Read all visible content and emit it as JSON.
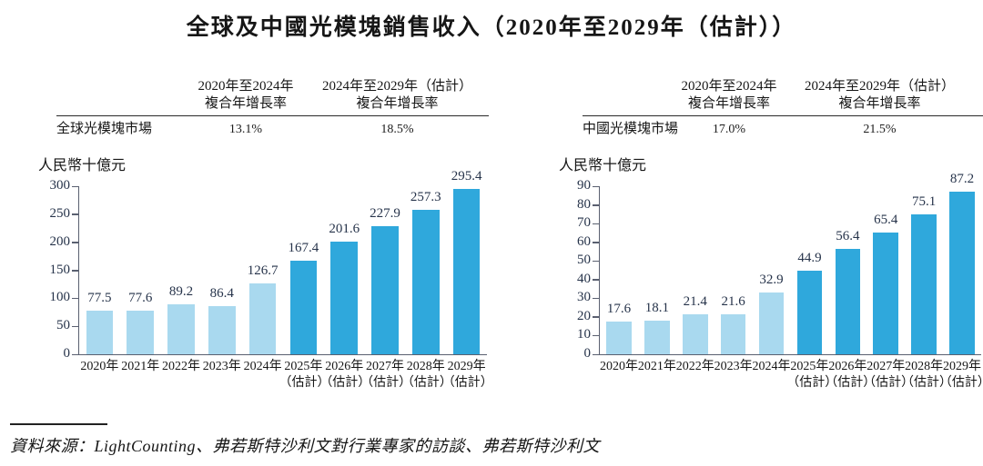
{
  "title": "全球及中國光模塊銷售收入（2020年至2029年（估計））",
  "source_note": {
    "text": "資料來源：LightCounting、弗若斯特沙利文對行業專家的訪談、弗若斯特沙利文"
  },
  "panels": [
    {
      "table": {
        "row_label": "全球光模塊市場",
        "col_headers": [
          "2020年至2024年\n複合年增長率",
          "2024年至2029年（估計）\n複合年增長率"
        ],
        "values": [
          "13.1%",
          "18.5%"
        ]
      },
      "unit_label": "人民幣十億元"
    },
    {
      "table": {
        "row_label": "中國光模塊市場",
        "col_headers": [
          "2020年至2024年\n複合年增長率",
          "2024年至2029年（估計）\n複合年增長率"
        ],
        "values": [
          "17.0%",
          "21.5%"
        ]
      },
      "unit_label": "人民幣十億元"
    }
  ],
  "chart_data": [
    {
      "type": "bar",
      "title": "全球光模塊市場",
      "ylabel": "人民幣十億元",
      "categories": [
        "2020年",
        "2021年",
        "2022年",
        "2023年",
        "2024年",
        "2025年\n（估計）",
        "2026年\n（估計）",
        "2027年\n（估計）",
        "2028年\n（估計）",
        "2029年\n（估計）"
      ],
      "values": [
        77.5,
        77.6,
        89.2,
        86.4,
        126.7,
        167.4,
        201.6,
        227.9,
        257.3,
        295.4
      ],
      "ylim": [
        0,
        300
      ],
      "ytick_step": 50,
      "estimate_start_index": 5,
      "bar_color_historical": "#a9d9ef",
      "bar_color_estimate": "#2fa8dc",
      "grid": false,
      "legend": "none"
    },
    {
      "type": "bar",
      "title": "中國光模塊市場",
      "ylabel": "人民幣十億元",
      "categories": [
        "2020年",
        "2021年",
        "2022年",
        "2023年",
        "2024年",
        "2025年\n（估計）",
        "2026年\n（估計）",
        "2027年\n（估計）",
        "2028年\n（估計）",
        "2029年\n（估計）"
      ],
      "values": [
        17.6,
        18.1,
        21.4,
        21.6,
        32.9,
        44.9,
        56.4,
        65.4,
        75.1,
        87.2
      ],
      "ylim": [
        0,
        90
      ],
      "ytick_step": 10,
      "estimate_start_index": 5,
      "bar_color_historical": "#a9d9ef",
      "bar_color_estimate": "#2fa8dc",
      "grid": false,
      "legend": "none"
    }
  ],
  "colors": {
    "bar_historical": "#a9d9ef",
    "bar_estimate": "#2fa8dc",
    "axis": "#5a6070",
    "number_text": "#26334a"
  }
}
